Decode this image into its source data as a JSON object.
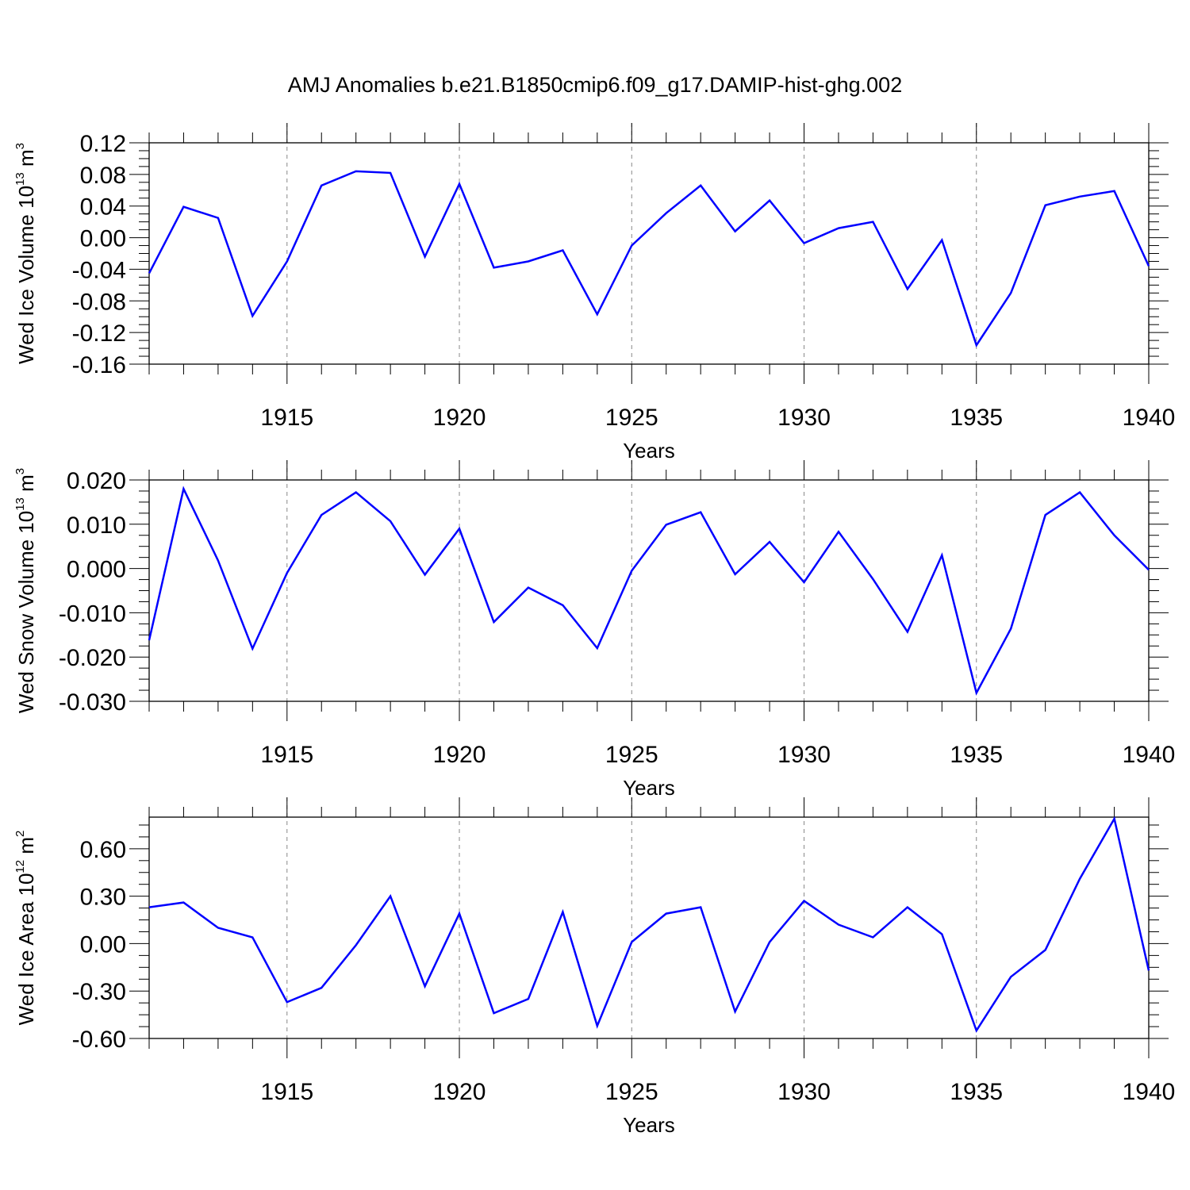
{
  "title": "AMJ Anomalies b.e21.B1850cmip6.f09_g17.DAMIP-hist-ghg.002",
  "colors": {
    "line": "#0000ff",
    "axis": "#000000",
    "grid": "#888888"
  },
  "chart_data": [
    {
      "type": "line",
      "ylabel": {
        "text": "Wed Ice Volume 10",
        "exponent": "13",
        "unit": " m",
        "unit_exponent": "3"
      },
      "xlabel": "Years",
      "xlim": [
        1911,
        1940
      ],
      "ylim": [
        -0.16,
        0.12
      ],
      "ytick_values": [
        0.12,
        0.08,
        0.04,
        0.0,
        -0.04,
        -0.08,
        -0.12,
        -0.16
      ],
      "ytick_labels": [
        "0.12",
        "0.08",
        "0.04",
        "0.00",
        "-0.04",
        "-0.08",
        "-0.12",
        "-0.16"
      ],
      "xtick_values": [
        1915,
        1920,
        1925,
        1930,
        1935,
        1940
      ],
      "xtick_labels": [
        "1915",
        "1920",
        "1925",
        "1930",
        "1935",
        "1940"
      ],
      "grid": "vertical dashed at major x ticks",
      "x": [
        1911,
        1912,
        1913,
        1914,
        1915,
        1916,
        1917,
        1918,
        1919,
        1920,
        1921,
        1922,
        1923,
        1924,
        1925,
        1926,
        1927,
        1928,
        1929,
        1930,
        1931,
        1932,
        1933,
        1934,
        1935,
        1936,
        1937,
        1938,
        1939,
        1940
      ],
      "values": [
        -0.045,
        0.039,
        0.025,
        -0.099,
        -0.03,
        0.066,
        0.084,
        0.082,
        -0.024,
        0.068,
        -0.038,
        -0.03,
        -0.016,
        -0.097,
        -0.01,
        0.031,
        0.066,
        0.008,
        0.047,
        -0.007,
        0.012,
        0.02,
        -0.065,
        -0.003,
        -0.136,
        -0.07,
        0.041,
        0.052,
        0.059,
        -0.036
      ]
    },
    {
      "type": "line",
      "ylabel": {
        "text": "Wed Snow Volume 10",
        "exponent": "13",
        "unit": " m",
        "unit_exponent": "3"
      },
      "xlabel": "Years",
      "xlim": [
        1911,
        1940
      ],
      "ylim": [
        -0.03,
        0.02
      ],
      "ytick_values": [
        0.02,
        0.01,
        0.0,
        -0.01,
        -0.02,
        -0.03
      ],
      "ytick_labels": [
        "0.020",
        "0.010",
        "0.000",
        "-0.010",
        "-0.020",
        "-0.030"
      ],
      "xtick_values": [
        1915,
        1920,
        1925,
        1930,
        1935,
        1940
      ],
      "xtick_labels": [
        "1915",
        "1920",
        "1925",
        "1930",
        "1935",
        "1940"
      ],
      "grid": "vertical dashed at major x ticks",
      "x": [
        1911,
        1912,
        1913,
        1914,
        1915,
        1916,
        1917,
        1918,
        1919,
        1920,
        1921,
        1922,
        1923,
        1924,
        1925,
        1926,
        1927,
        1928,
        1929,
        1930,
        1931,
        1932,
        1933,
        1934,
        1935,
        1936,
        1937,
        1938,
        1939,
        1940
      ],
      "values": [
        -0.0162,
        0.018,
        0.0018,
        -0.0181,
        -0.001,
        0.0121,
        0.0172,
        0.0107,
        -0.0014,
        0.009,
        -0.0121,
        -0.0043,
        -0.0083,
        -0.018,
        -0.0005,
        0.0099,
        0.0127,
        -0.0013,
        0.006,
        -0.0031,
        0.0083,
        -0.0024,
        -0.0143,
        0.003,
        -0.0281,
        -0.0136,
        0.0121,
        0.0172,
        0.0075,
        -0.0003
      ]
    },
    {
      "type": "line",
      "ylabel": {
        "text": "Wed Ice Area 10",
        "exponent": "12",
        "unit": " m",
        "unit_exponent": "2"
      },
      "xlabel": "Years",
      "xlim": [
        1911,
        1940
      ],
      "ylim": [
        -0.6,
        0.8
      ],
      "ytick_values": [
        0.6,
        0.3,
        0.0,
        -0.3,
        -0.6
      ],
      "ytick_labels": [
        "0.60",
        "0.30",
        "0.00",
        "-0.30",
        "-0.60"
      ],
      "xtick_values": [
        1915,
        1920,
        1925,
        1930,
        1935,
        1940
      ],
      "xtick_labels": [
        "1915",
        "1920",
        "1925",
        "1930",
        "1935",
        "1940"
      ],
      "grid": "vertical dashed at major x ticks",
      "x": [
        1911,
        1912,
        1913,
        1914,
        1915,
        1916,
        1917,
        1918,
        1919,
        1920,
        1921,
        1922,
        1923,
        1924,
        1925,
        1926,
        1927,
        1928,
        1929,
        1930,
        1931,
        1932,
        1933,
        1934,
        1935,
        1936,
        1937,
        1938,
        1939,
        1940
      ],
      "values": [
        0.23,
        0.26,
        0.1,
        0.04,
        -0.37,
        -0.28,
        -0.01,
        0.3,
        -0.27,
        0.19,
        -0.44,
        -0.35,
        0.2,
        -0.52,
        0.01,
        0.19,
        0.23,
        -0.43,
        0.01,
        0.27,
        0.12,
        0.04,
        0.23,
        0.06,
        -0.55,
        -0.21,
        -0.04,
        0.41,
        0.79,
        -0.17
      ]
    }
  ]
}
